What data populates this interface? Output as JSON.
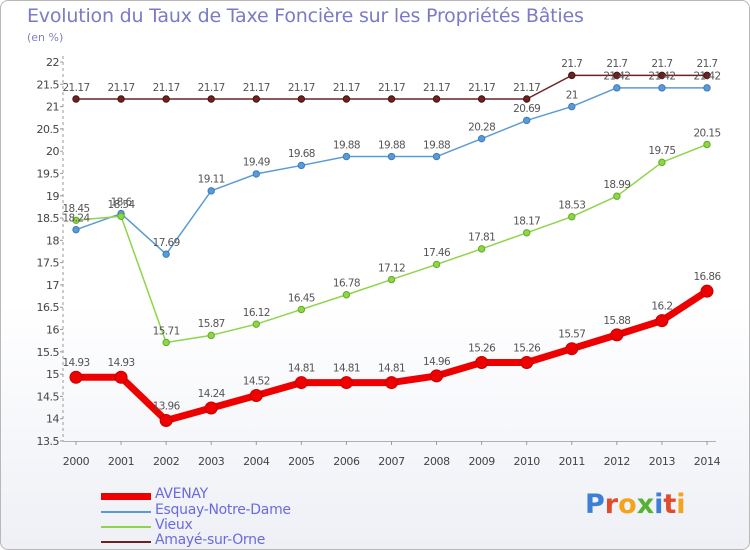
{
  "title": "Evolution du Taux de Taxe Foncière sur les Propriétés Bâties",
  "unit_label": "(en %)",
  "logo": {
    "letters": [
      {
        "char": "P",
        "color": "#3d7fd6"
      },
      {
        "char": "r",
        "color": "#e04b2a"
      },
      {
        "char": "o",
        "color": "#f3a41c"
      },
      {
        "char": "x",
        "color": "#55b234"
      },
      {
        "char": "i",
        "color": "#3d7fd6"
      },
      {
        "char": "t",
        "color": "#e04b2a"
      },
      {
        "char": "i",
        "color": "#f3a41c"
      }
    ]
  },
  "chart_data": {
    "type": "line",
    "title": "Evolution du Taux de Taxe Foncière sur les Propriétés Bâties",
    "ylabel": "(en %)",
    "xlabel": "",
    "ylim": [
      13.5,
      22
    ],
    "yticks": [
      "13.5",
      "14",
      "14.5",
      "15",
      "15.5",
      "16",
      "16.5",
      "17",
      "17.5",
      "18",
      "18.5",
      "19",
      "19.5",
      "20",
      "20.5",
      "21",
      "21.5",
      "22"
    ],
    "grid": false,
    "legend_position": "bottom-left",
    "x": [
      "2000",
      "2001",
      "2002",
      "2003",
      "2004",
      "2005",
      "2006",
      "2007",
      "2008",
      "2009",
      "2010",
      "2011",
      "2012",
      "2013",
      "2014"
    ],
    "series": [
      {
        "name": "Amayé-sur-Orne",
        "color": "#6b2222",
        "values": [
          21.17,
          21.17,
          21.17,
          21.17,
          21.17,
          21.17,
          21.17,
          21.17,
          21.17,
          21.17,
          21.17,
          21.7,
          21.7,
          21.7,
          21.7
        ],
        "labels": [
          "21.17",
          "21.17",
          "21.17",
          "21.17",
          "21.17",
          "21.17",
          "21.17",
          "21.17",
          "21.17",
          "21.17",
          "21.17",
          "21.7",
          "21.7",
          "21.7",
          "21.7"
        ]
      },
      {
        "name": "Esquay-Notre-Dame",
        "color": "#5b9bd5",
        "values": [
          18.24,
          18.6,
          17.69,
          19.11,
          19.49,
          19.68,
          19.88,
          19.88,
          19.88,
          20.28,
          20.69,
          21,
          21.42,
          21.42,
          21.42
        ],
        "labels": [
          "18.24",
          "18.6",
          "17.69",
          "19.11",
          "19.49",
          "19.68",
          "19.88",
          "19.88",
          "19.88",
          "20.28",
          "20.69",
          "21",
          "21.42",
          "21.42",
          "21.42"
        ]
      },
      {
        "name": "Vieux",
        "color": "#8fd44a",
        "values": [
          18.45,
          18.54,
          15.71,
          15.87,
          16.12,
          16.45,
          16.78,
          17.12,
          17.46,
          17.81,
          18.17,
          18.53,
          18.99,
          19.75,
          20.15
        ],
        "labels": [
          "18.45",
          "18.54",
          "15.71",
          "15.87",
          "16.12",
          "16.45",
          "16.78",
          "17.12",
          "17.46",
          "17.81",
          "18.17",
          "18.53",
          "18.99",
          "19.75",
          "20.15"
        ]
      },
      {
        "name": "AVENAY",
        "color": "#ee0000",
        "values": [
          14.93,
          14.93,
          13.96,
          14.24,
          14.52,
          14.81,
          14.81,
          14.81,
          14.96,
          15.26,
          15.26,
          15.57,
          15.88,
          16.2,
          16.86
        ],
        "labels": [
          "14.93",
          "14.93",
          "13.96",
          "14.24",
          "14.52",
          "14.81",
          "14.81",
          "14.81",
          "14.96",
          "15.26",
          "15.26",
          "15.57",
          "15.88",
          "16.2",
          "16.86"
        ]
      }
    ]
  },
  "legend": [
    {
      "name": "AVENAY",
      "color": "#ee0000"
    },
    {
      "name": "Esquay-Notre-Dame",
      "color": "#5b9bd5"
    },
    {
      "name": "Vieux",
      "color": "#8fd44a"
    },
    {
      "name": "Amayé-sur-Orne",
      "color": "#6b2222"
    }
  ]
}
